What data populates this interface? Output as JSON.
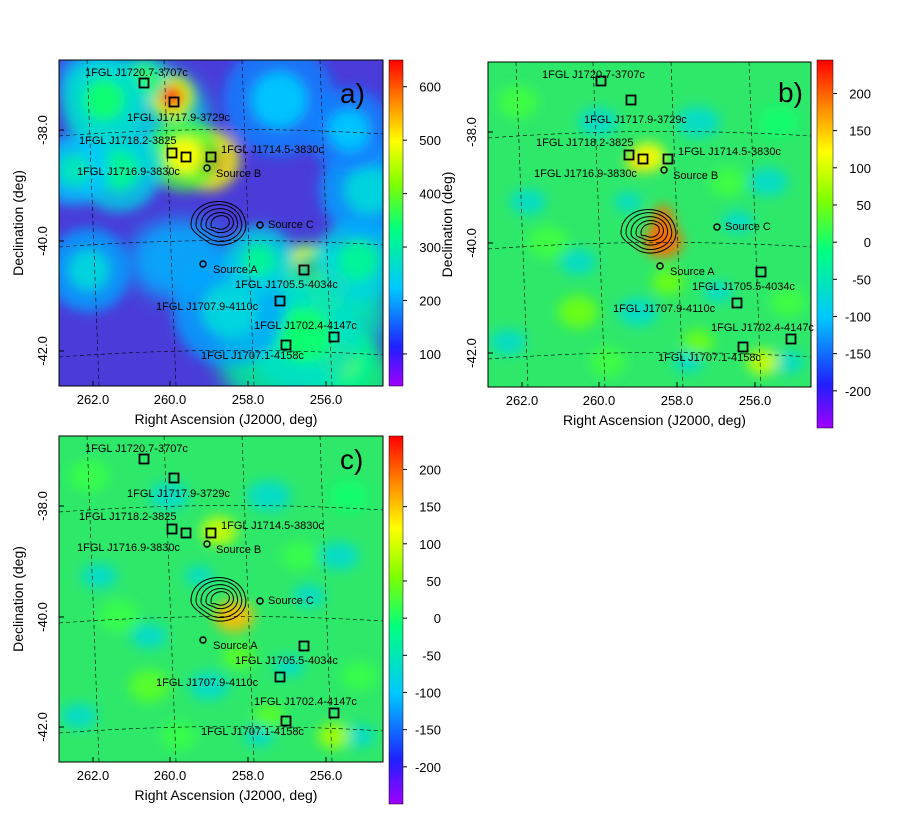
{
  "figure": {
    "panels": [
      {
        "label": "a)",
        "colorbar_ticks": [
          "600",
          "500",
          "400",
          "300",
          "200",
          "100"
        ],
        "colorbar_range": [
          40,
          650
        ],
        "blob_scale": 1.0,
        "x_ticks": [
          "262.0",
          "260.0",
          "258.0",
          "256.0"
        ],
        "y_ticks": [
          "-38.0",
          "-40.0",
          "-42.0"
        ],
        "xlabel": "Right Ascension (J2000, deg)",
        "ylabel": "Declination (deg)"
      },
      {
        "label": "b)",
        "colorbar_ticks": [
          "200",
          "150",
          "100",
          "50",
          "0",
          "-50",
          "-100",
          "-150",
          "-200"
        ],
        "colorbar_range": [
          -250,
          245
        ],
        "blob_scale": 0.45,
        "x_ticks": [
          "262.0",
          "260.0",
          "258.0",
          "256.0"
        ],
        "y_ticks": [
          "-38.0",
          "-40.0",
          "-42.0"
        ],
        "xlabel": "Right Ascension (J2000, deg)",
        "ylabel": "Declination (deg)"
      },
      {
        "label": "c)",
        "colorbar_ticks": [
          "200",
          "150",
          "100",
          "50",
          "0",
          "-50",
          "-100",
          "-150",
          "-200"
        ],
        "colorbar_range": [
          -250,
          245
        ],
        "blob_scale": 0.35,
        "x_ticks": [
          "262.0",
          "260.0",
          "258.0",
          "256.0"
        ],
        "y_ticks": [
          "-38.0",
          "-40.0",
          "-42.0"
        ],
        "xlabel": "Right Ascension (J2000, deg)",
        "ylabel": "Declination (deg)"
      }
    ],
    "fermi_sources": [
      {
        "name": "1FGL J1720.7-3707c"
      },
      {
        "name": "1FGL J1717.9-3729c"
      },
      {
        "name": "1FGL J1718.2-3825"
      },
      {
        "name": "1FGL J1716.9-3830c"
      },
      {
        "name": "1FGL J1714.5-3830c"
      },
      {
        "name": "1FGL J1705.5-4034c"
      },
      {
        "name": "1FGL J1707.9-4110c"
      },
      {
        "name": "1FGL J1702.4-4147c"
      },
      {
        "name": "1FGL J1707.1-4158c"
      }
    ],
    "point_sources": [
      {
        "name": "Source A"
      },
      {
        "name": "Source B"
      },
      {
        "name": "Source C"
      }
    ]
  }
}
